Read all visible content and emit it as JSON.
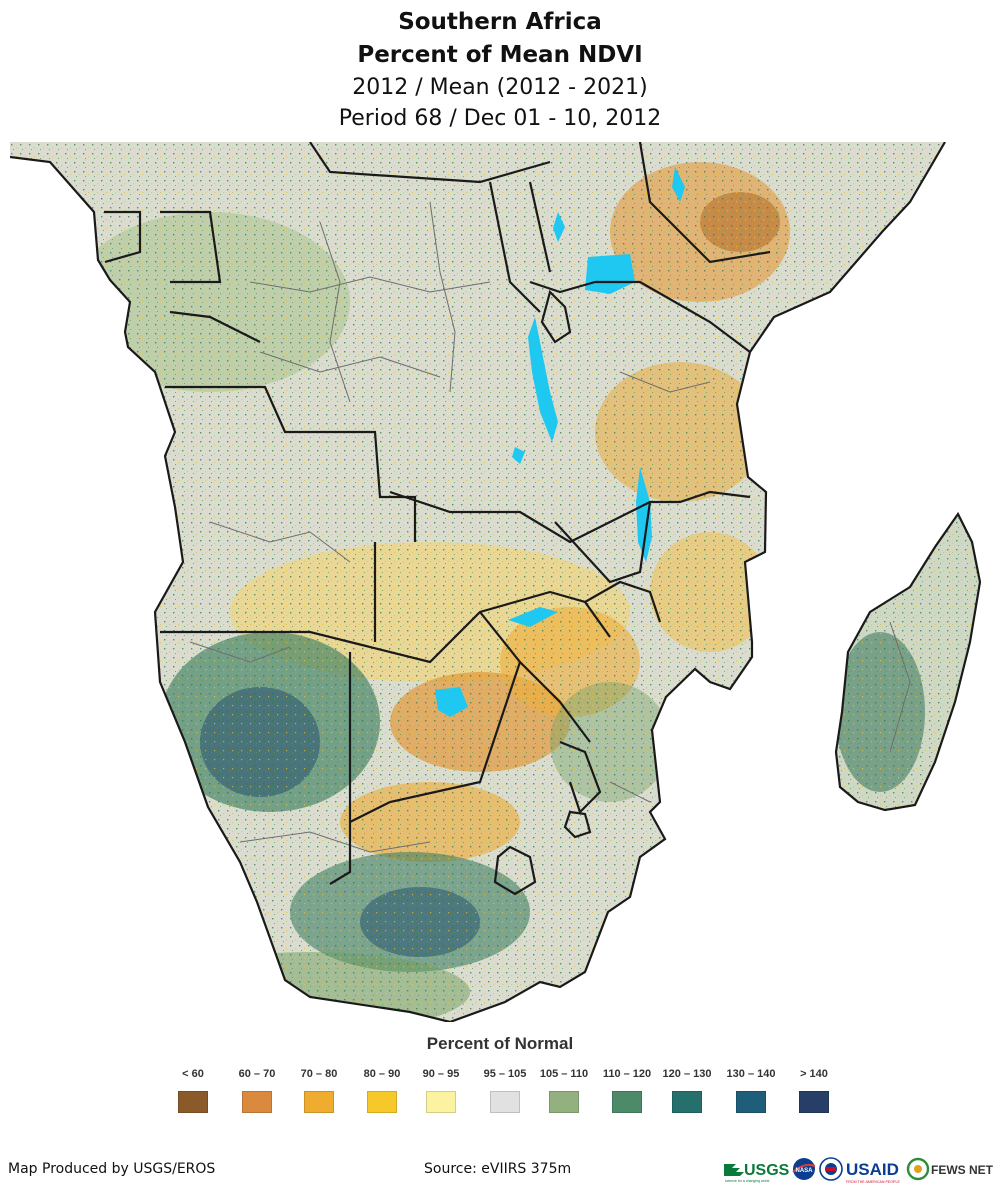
{
  "header": {
    "title_line1": "Southern Africa",
    "title_line2": "Percent of Mean NDVI",
    "subtitle_line1": "2012 / Mean (2012 - 2021)",
    "subtitle_line2": "Period 68 / Dec 01 - 10, 2012"
  },
  "legend": {
    "title": "Percent of Normal",
    "items": [
      {
        "label": "< 60",
        "color": "#8b5a2b"
      },
      {
        "label": "60 – 70",
        "color": "#d98a3f"
      },
      {
        "label": "70 – 80",
        "color": "#efac2f"
      },
      {
        "label": "80 – 90",
        "color": "#f7c82a"
      },
      {
        "label": "90 – 95",
        "color": "#fbf3a1"
      },
      {
        "label": "95 – 105",
        "color": "#e1e1e1"
      },
      {
        "label": "105 – 110",
        "color": "#93b07f"
      },
      {
        "label": "110 – 120",
        "color": "#4d8a69"
      },
      {
        "label": "120 – 130",
        "color": "#25706c"
      },
      {
        "label": "130 – 140",
        "color": "#1f5e7a"
      },
      {
        "label": "> 140",
        "color": "#273f66"
      }
    ]
  },
  "map": {
    "water_color": "#1ec8f0",
    "border_color": "#1a1a1a",
    "admin_color": "#6e6e6e"
  },
  "footer": {
    "credit": "Map Produced by USGS/EROS",
    "source": "Source: eVIIRS 375m",
    "logo_usgs": "USGS",
    "logo_usgs_tag": "science for a changing world",
    "logo_nasa": "NASA",
    "logo_usaid": "USAID",
    "logo_usaid_tag": "FROM THE AMERICAN PEOPLE",
    "logo_fews": "FEWS NET"
  }
}
